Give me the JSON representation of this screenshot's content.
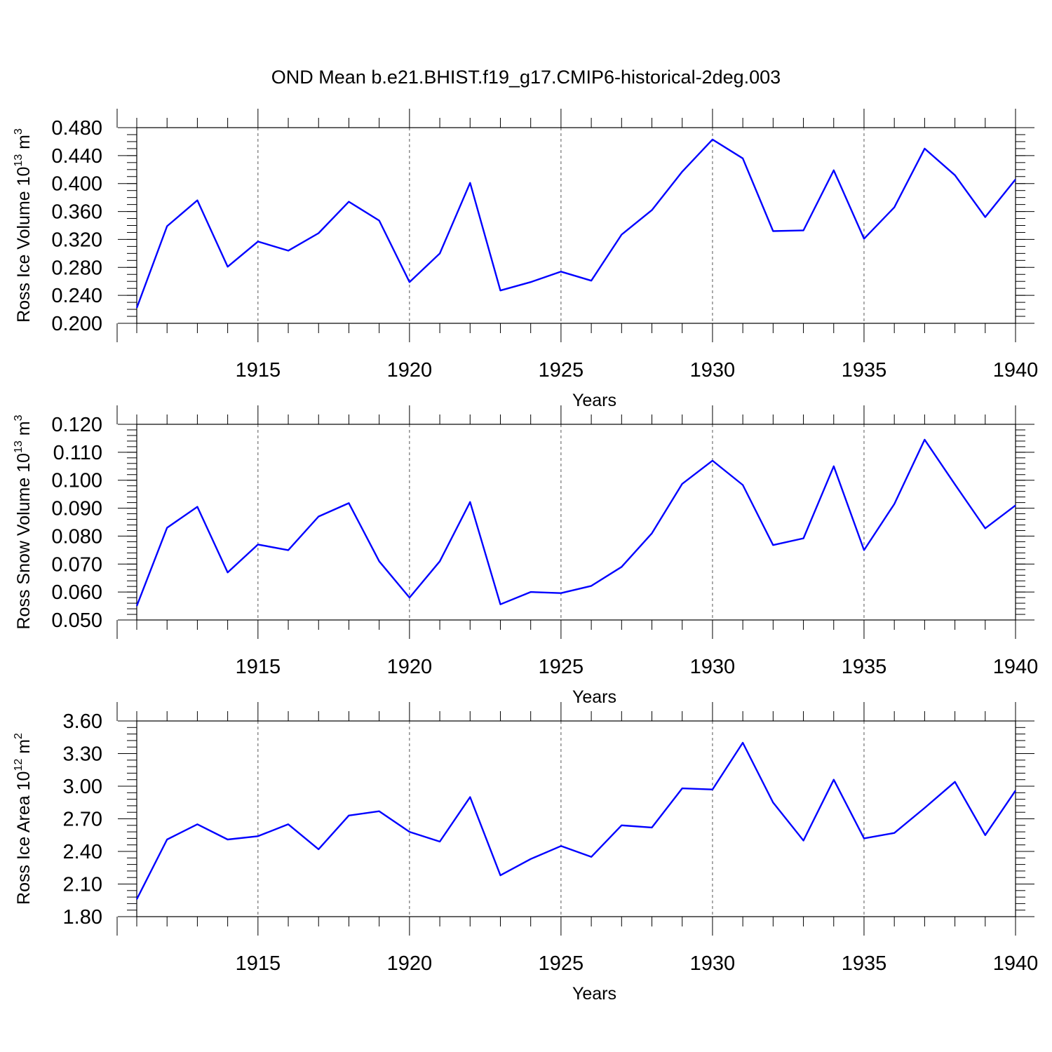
{
  "title": "OND Mean b.e21.BHIST.f19_g17.CMIP6-historical-2deg.003",
  "chart_data": [
    {
      "type": "line",
      "name": "ross-ice-volume",
      "ylabel": "Ross Ice Volume 10",
      "ylabel_exp": "13",
      "ylabel_unit": " m",
      "ylabel_unit_exp": "3",
      "xlabel": "Years",
      "xlim": [
        1911,
        1940
      ],
      "ylim": [
        0.2,
        0.48
      ],
      "yticks": [
        "0.200",
        "0.240",
        "0.280",
        "0.320",
        "0.360",
        "0.400",
        "0.440",
        "0.480"
      ],
      "yminor": 0.01,
      "xticks": [
        "1915",
        "1920",
        "1925",
        "1930",
        "1935",
        "1940"
      ],
      "grid_x": [
        1915,
        1920,
        1925,
        1930,
        1935
      ],
      "color": "#0000ff",
      "x": [
        1911,
        1912,
        1913,
        1914,
        1915,
        1916,
        1917,
        1918,
        1919,
        1920,
        1921,
        1922,
        1923,
        1924,
        1925,
        1926,
        1927,
        1928,
        1929,
        1930,
        1931,
        1932,
        1933,
        1934,
        1935,
        1936,
        1937,
        1938,
        1939,
        1940
      ],
      "values": [
        0.222,
        0.339,
        0.376,
        0.281,
        0.317,
        0.304,
        0.329,
        0.374,
        0.347,
        0.259,
        0.3,
        0.401,
        0.247,
        0.259,
        0.274,
        0.261,
        0.327,
        0.362,
        0.417,
        0.463,
        0.436,
        0.332,
        0.333,
        0.419,
        0.321,
        0.366,
        0.45,
        0.412,
        0.352,
        0.406
      ]
    },
    {
      "type": "line",
      "name": "ross-snow-volume",
      "ylabel": "Ross Snow Volume 10",
      "ylabel_exp": "13",
      "ylabel_unit": " m",
      "ylabel_unit_exp": "3",
      "xlabel": "Years",
      "xlim": [
        1911,
        1940
      ],
      "ylim": [
        0.05,
        0.12
      ],
      "yticks": [
        "0.050",
        "0.060",
        "0.070",
        "0.080",
        "0.090",
        "0.100",
        "0.110",
        "0.120"
      ],
      "yminor": 0.002,
      "xticks": [
        "1915",
        "1920",
        "1925",
        "1930",
        "1935",
        "1940"
      ],
      "grid_x": [
        1915,
        1920,
        1925,
        1930,
        1935
      ],
      "color": "#0000ff",
      "x": [
        1911,
        1912,
        1913,
        1914,
        1915,
        1916,
        1917,
        1918,
        1919,
        1920,
        1921,
        1922,
        1923,
        1924,
        1925,
        1926,
        1927,
        1928,
        1929,
        1930,
        1931,
        1932,
        1933,
        1934,
        1935,
        1936,
        1937,
        1938,
        1939,
        1940
      ],
      "values": [
        0.055,
        0.083,
        0.0905,
        0.067,
        0.077,
        0.075,
        0.087,
        0.0918,
        0.071,
        0.058,
        0.071,
        0.0922,
        0.0556,
        0.06,
        0.0596,
        0.0622,
        0.069,
        0.081,
        0.0987,
        0.107,
        0.0983,
        0.0768,
        0.0792,
        0.105,
        0.075,
        0.0915,
        0.1145,
        0.0985,
        0.0828,
        0.091
      ]
    },
    {
      "type": "line",
      "name": "ross-ice-area",
      "ylabel": "Ross Ice Area 10",
      "ylabel_exp": "12",
      "ylabel_unit": " m",
      "ylabel_unit_exp": "2",
      "xlabel": "Years",
      "xlim": [
        1911,
        1940
      ],
      "ylim": [
        1.8,
        3.6
      ],
      "yticks": [
        "1.80",
        "2.10",
        "2.40",
        "2.70",
        "3.00",
        "3.30",
        "3.60"
      ],
      "yminor": 0.06,
      "xticks": [
        "1915",
        "1920",
        "1925",
        "1930",
        "1935",
        "1940"
      ],
      "grid_x": [
        1915,
        1920,
        1925,
        1930,
        1935
      ],
      "color": "#0000ff",
      "x": [
        1911,
        1912,
        1913,
        1914,
        1915,
        1916,
        1917,
        1918,
        1919,
        1920,
        1921,
        1922,
        1923,
        1924,
        1925,
        1926,
        1927,
        1928,
        1929,
        1930,
        1931,
        1932,
        1933,
        1934,
        1935,
        1936,
        1937,
        1938,
        1939,
        1940
      ],
      "values": [
        1.96,
        2.51,
        2.65,
        2.51,
        2.54,
        2.65,
        2.42,
        2.73,
        2.77,
        2.58,
        2.49,
        2.9,
        2.18,
        2.33,
        2.45,
        2.35,
        2.64,
        2.62,
        2.98,
        2.97,
        3.4,
        2.85,
        2.5,
        3.06,
        2.52,
        2.57,
        2.8,
        3.04,
        2.55,
        2.96
      ]
    }
  ]
}
